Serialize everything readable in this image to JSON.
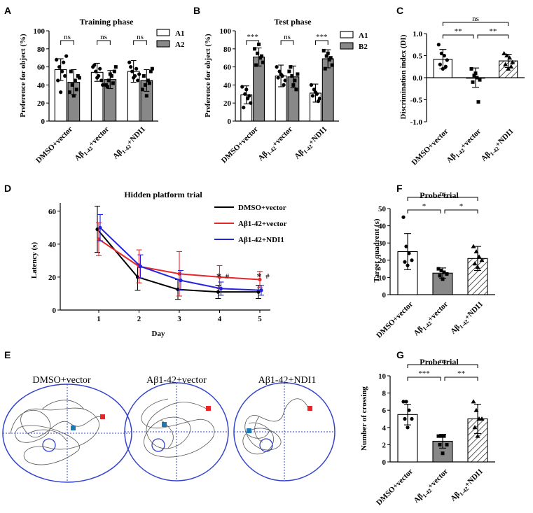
{
  "colors": {
    "white": "#ffffff",
    "grey": "#888888",
    "black": "#000000",
    "red": "#e8262a",
    "blue": "#2424e0",
    "arena": "#3344cc",
    "start": "#e8262a",
    "platform": "#1f78b4"
  },
  "panels": {
    "A": {
      "letter": "A",
      "title": "Training phase",
      "ylabel": "Preference for object (%)",
      "yticks": [
        "0",
        "20",
        "40",
        "60",
        "80",
        "100"
      ],
      "legend": [
        "A1",
        "A2"
      ],
      "sig": [
        "ns",
        "ns",
        "ns"
      ],
      "categories": [
        "DMSO+vector",
        "Aβ1-42+vector",
        "Aβ1-42+NDI1"
      ]
    },
    "B": {
      "letter": "B",
      "title": "Test phase",
      "ylabel": "Preference for object (%)",
      "yticks": [
        "0",
        "20",
        "40",
        "60",
        "80",
        "100"
      ],
      "legend": [
        "A1",
        "B2"
      ],
      "sig": [
        "***",
        "ns",
        "***"
      ],
      "categories": [
        "DMSO+vector",
        "Aβ1-42+vector",
        "Aβ1-42+NDI1"
      ]
    },
    "C": {
      "letter": "C",
      "ylabel": "Discrimination index (DI)",
      "yticks": [
        "1.0",
        "0.5",
        "0.0",
        "-0.5",
        "-1.0"
      ],
      "sig": [
        "**",
        "**",
        "ns"
      ],
      "categories": [
        "DMSO+vector",
        "Aβ1-42+vector",
        "Aβ1-42+NDI1"
      ]
    },
    "D": {
      "letter": "D",
      "title": "Hidden platform trial",
      "ylabel": "Latency (s)",
      "xlabel": "Day",
      "yticks": [
        "0",
        "20",
        "40",
        "60"
      ],
      "xticks": [
        "1",
        "2",
        "3",
        "4",
        "5"
      ],
      "legend": [
        "DMSO+vector",
        "Aβ1-42+vector",
        "Aβ1-42+NDI1"
      ],
      "marks": [
        "*",
        "#",
        "*",
        "#"
      ]
    },
    "E": {
      "letter": "E",
      "labels": [
        "DMSO+vector",
        "Aβ1-42+vector",
        "Aβ1-42+NDI1"
      ]
    },
    "F": {
      "letter": "F",
      "title": "Probe trial",
      "ylabel": "Target quadrent (s)",
      "yticks": [
        "0",
        "10",
        "20",
        "30",
        "40",
        "50"
      ],
      "sig": [
        "*",
        "*",
        "ns"
      ],
      "categories": [
        "DMSO+vector",
        "Aβ1-42+vector",
        "Aβ1-42+NDI1"
      ]
    },
    "G": {
      "letter": "G",
      "title": "Probe trial",
      "ylabel": "Number of crossing",
      "yticks": [
        "0",
        "2",
        "4",
        "6",
        "8",
        "10"
      ],
      "sig": [
        "***",
        "**",
        "ns"
      ],
      "categories": [
        "DMSO+vector",
        "Aβ1-42+vector",
        "Aβ1-42+NDI1"
      ]
    }
  },
  "chart_data": [
    {
      "panel": "A",
      "type": "bar",
      "title": "Training phase",
      "ylabel": "Preference for object (%)",
      "ylim": [
        0,
        100
      ],
      "categories": [
        "DMSO+vector",
        "Aβ1-42+vector",
        "Aβ1-42+NDI1"
      ],
      "series": [
        {
          "name": "A1",
          "values": [
            57,
            54,
            55
          ],
          "errors": [
            12,
            10,
            12
          ],
          "points": [
            [
              68,
              60,
              55,
              50,
              45,
              32,
              65,
              72
            ],
            [
              60,
              55,
              50,
              45,
              62,
              48,
              58,
              40
            ],
            [
              65,
              55,
              50,
              45,
              60,
              48,
              58,
              52
            ]
          ]
        },
        {
          "name": "A2",
          "values": [
            43,
            46,
            45
          ],
          "errors": [
            14,
            10,
            12
          ],
          "points": [
            [
              32,
              40,
              45,
              50,
              55,
              28,
              35,
              48
            ],
            [
              40,
              45,
              50,
              55,
              38,
              52,
              42,
              60
            ],
            [
              35,
              40,
              45,
              55,
              50,
              28,
              42,
              58
            ]
          ]
        }
      ],
      "significance": [
        "ns",
        "ns",
        "ns"
      ]
    },
    {
      "panel": "B",
      "type": "bar",
      "title": "Test phase",
      "ylabel": "Preference for object (%)",
      "ylim": [
        0,
        100
      ],
      "categories": [
        "DMSO+vector",
        "Aβ1-42+vector",
        "Aβ1-42+NDI1"
      ],
      "series": [
        {
          "name": "A1",
          "values": [
            29,
            50,
            31
          ],
          "errors": [
            10,
            12,
            10
          ],
          "points": [
            [
              38,
              30,
              25,
              20,
              15,
              35,
              28
            ],
            [
              60,
              55,
              50,
              45,
              48,
              52,
              40
            ],
            [
              40,
              35,
              30,
              25,
              28,
              32,
              22
            ]
          ]
        },
        {
          "name": "B2",
          "values": [
            71,
            49,
            69
          ],
          "errors": [
            10,
            12,
            10
          ],
          "points": [
            [
              80,
              75,
              70,
              65,
              62,
              85,
              72
            ],
            [
              55,
              50,
              45,
              52,
              60,
              40,
              35
            ],
            [
              78,
              72,
              68,
              62,
              58,
              75,
              70
            ]
          ]
        }
      ],
      "significance": [
        "***",
        "ns",
        "***"
      ]
    },
    {
      "panel": "C",
      "type": "bar",
      "ylabel": "Discrimination index (DI)",
      "ylim": [
        -1.0,
        1.0
      ],
      "categories": [
        "DMSO+vector",
        "Aβ1-42+vector",
        "Aβ1-42+NDI1"
      ],
      "values": [
        0.42,
        0.0,
        0.38
      ],
      "errors": [
        0.22,
        0.22,
        0.15
      ],
      "points": [
        [
          0.75,
          0.55,
          0.5,
          0.4,
          0.3,
          0.2,
          0.25
        ],
        [
          0.2,
          0.05,
          0.0,
          -0.05,
          -0.1,
          0.1,
          -0.55
        ],
        [
          0.55,
          0.5,
          0.45,
          0.35,
          0.3,
          0.2,
          0.25
        ]
      ],
      "comparisons": [
        {
          "pair": [
            0,
            1
          ],
          "label": "**"
        },
        {
          "pair": [
            1,
            2
          ],
          "label": "**"
        },
        {
          "pair": [
            0,
            2
          ],
          "label": "ns"
        }
      ]
    },
    {
      "panel": "D",
      "type": "line",
      "title": "Hidden platform trial",
      "xlabel": "Day",
      "ylabel": "Latency (s)",
      "ylim": [
        0,
        65
      ],
      "x": [
        1,
        2,
        3,
        4,
        5
      ],
      "series": [
        {
          "name": "DMSO+vector",
          "color": "#000000",
          "values": [
            49,
            20,
            12.5,
            11,
            11
          ],
          "errors": [
            14,
            8,
            6,
            4,
            4
          ]
        },
        {
          "name": "Aβ1-42+vector",
          "color": "#e8262a",
          "values": [
            43,
            26.5,
            22,
            20,
            18.5
          ],
          "errors": [
            10,
            10,
            13.5,
            7,
            5
          ]
        },
        {
          "name": "Aβ1-42+NDI1",
          "color": "#2424e0",
          "values": [
            50,
            26.5,
            18,
            13,
            12
          ],
          "errors": [
            8,
            7,
            6,
            4,
            3
          ]
        }
      ],
      "annotations": [
        {
          "x": 4,
          "labels": [
            "*",
            "#"
          ]
        },
        {
          "x": 5,
          "labels": [
            "*",
            "#"
          ]
        }
      ]
    },
    {
      "panel": "F",
      "type": "bar",
      "title": "Probe trial",
      "ylabel": "Target quadrent (s)",
      "ylim": [
        0,
        50
      ],
      "categories": [
        "DMSO+vector",
        "Aβ1-42+vector",
        "Aβ1-42+NDI1"
      ],
      "values": [
        25,
        12.5,
        21
      ],
      "errors": [
        10.5,
        3,
        7
      ],
      "points": [
        [
          45,
          28,
          24,
          20,
          19,
          17
        ],
        [
          15,
          14,
          13,
          12,
          11,
          9
        ],
        [
          28,
          25,
          22,
          20,
          18,
          16
        ]
      ],
      "comparisons": [
        {
          "pair": [
            0,
            1
          ],
          "label": "*"
        },
        {
          "pair": [
            1,
            2
          ],
          "label": "*"
        },
        {
          "pair": [
            0,
            2
          ],
          "label": "ns"
        }
      ]
    },
    {
      "panel": "G",
      "type": "bar",
      "title": "Probe trial",
      "ylabel": "Number of crossing",
      "ylim": [
        0,
        10
      ],
      "categories": [
        "DMSO+vector",
        "Aβ1-42+vector",
        "Aβ1-42+NDI1"
      ],
      "values": [
        5.5,
        2.4,
        5.0
      ],
      "errors": [
        1.2,
        0.8,
        1.7
      ],
      "points": [
        [
          7,
          7,
          6,
          5,
          5,
          4
        ],
        [
          3,
          3,
          3,
          2,
          2,
          1
        ],
        [
          7,
          6,
          5,
          5,
          4,
          3
        ]
      ],
      "comparisons": [
        {
          "pair": [
            0,
            1
          ],
          "label": "***"
        },
        {
          "pair": [
            1,
            2
          ],
          "label": "**"
        },
        {
          "pair": [
            0,
            2
          ],
          "label": "ns"
        }
      ]
    }
  ]
}
